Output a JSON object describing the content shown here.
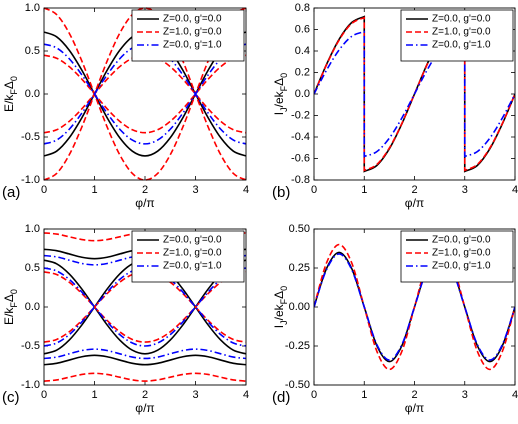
{
  "chart_data": [
    {
      "type": "line",
      "panel_label": "(a)",
      "xlabel": "φ/π",
      "ylabel": [
        "E/k",
        "F",
        "Δ",
        "0"
      ],
      "xlim": [
        0,
        4
      ],
      "xticks": [
        0,
        1,
        2,
        3,
        4
      ],
      "ylim": [
        -1,
        1
      ],
      "yticks": [
        {
          "value": 1,
          "label": "1.0"
        },
        {
          "value": 0.5,
          "label": "0.5"
        },
        {
          "value": 0,
          "label": "0.0"
        },
        {
          "value": -0.5,
          "label": "-0.5"
        },
        {
          "value": -1,
          "label": "-1.0"
        }
      ],
      "legend": "upper right",
      "x": [
        0,
        0.25,
        0.5,
        0.75,
        1,
        1.25,
        1.5,
        1.75,
        2,
        2.25,
        2.5,
        2.75,
        3,
        3.25,
        3.5,
        3.75,
        4
      ],
      "series": [
        {
          "name": "Z=0.0, g'=0.0",
          "color": "#000000",
          "dash": "solid",
          "curves": [
            [
              0.72,
              0.665,
              0.509,
              0.276,
              0,
              -0.276,
              -0.509,
              -0.665,
              -0.72,
              -0.665,
              -0.509,
              -0.276,
              0,
              0.276,
              0.509,
              0.665,
              0.72
            ],
            [
              -0.72,
              -0.665,
              -0.509,
              -0.276,
              0,
              0.276,
              0.509,
              0.665,
              0.72,
              0.665,
              0.509,
              0.276,
              0,
              -0.276,
              -0.509,
              -0.665,
              -0.72
            ]
          ]
        },
        {
          "name": "Z=1.0, g'=0.0",
          "color": "#ff0000",
          "dash": "dashed",
          "curves": [
            [
              1,
              0.924,
              0.707,
              0.383,
              0,
              -0.383,
              -0.707,
              -0.924,
              -1,
              -0.924,
              -0.707,
              -0.383,
              0,
              0.383,
              0.707,
              0.924,
              1
            ],
            [
              -1,
              -0.924,
              -0.707,
              -0.383,
              0,
              0.383,
              0.707,
              0.924,
              1,
              0.924,
              0.707,
              0.383,
              0,
              -0.383,
              -0.707,
              -0.924,
              -1
            ],
            [
              0.45,
              0.416,
              0.318,
              0.172,
              0,
              -0.172,
              -0.318,
              -0.416,
              -0.45,
              -0.416,
              -0.318,
              -0.172,
              0,
              0.172,
              0.318,
              0.416,
              0.45
            ],
            [
              -0.45,
              -0.416,
              -0.318,
              -0.172,
              0,
              0.172,
              0.318,
              0.416,
              0.45,
              0.416,
              0.318,
              0.172,
              0,
              -0.172,
              -0.318,
              -0.416,
              -0.45
            ]
          ]
        },
        {
          "name": "Z=0.0, g'=1.0",
          "color": "#0000ff",
          "dash": "dashdot",
          "curves": [
            [
              0.58,
              0.536,
              0.41,
              0.222,
              0,
              -0.222,
              -0.41,
              -0.536,
              -0.58,
              -0.536,
              -0.41,
              -0.222,
              0,
              0.222,
              0.41,
              0.536,
              0.58
            ],
            [
              -0.58,
              -0.536,
              -0.41,
              -0.222,
              0,
              0.222,
              0.41,
              0.536,
              0.58,
              0.536,
              0.41,
              0.222,
              0,
              -0.222,
              -0.41,
              -0.536,
              -0.58
            ]
          ]
        }
      ]
    },
    {
      "type": "line",
      "panel_label": "(b)",
      "xlabel": "φ/π",
      "ylabel": [
        "I",
        "J",
        "/ek",
        "F",
        "Δ",
        "0"
      ],
      "xlim": [
        0,
        4
      ],
      "xticks": [
        0,
        1,
        2,
        3,
        4
      ],
      "ylim": [
        -0.8,
        0.8
      ],
      "yticks": [
        0.8,
        0.6,
        0.4,
        0.2,
        {
          "value": 0,
          "label": "0.0"
        },
        -0.2,
        -0.4,
        -0.6,
        -0.8
      ],
      "legend": "upper right",
      "x": [
        0,
        0.25,
        0.5,
        0.75,
        1,
        1,
        1.25,
        1.5,
        1.75,
        2,
        2.25,
        2.5,
        2.75,
        3,
        3,
        3.25,
        3.5,
        3.75,
        4
      ],
      "series": [
        {
          "name": "Z=0.0, g'=0.0",
          "color": "#000000",
          "dash": "solid",
          "curves": [
            [
              0,
              0.276,
              0.509,
              0.665,
              0.72,
              -0.72,
              -0.665,
              -0.509,
              -0.276,
              0,
              0.276,
              0.509,
              0.665,
              0.72,
              -0.72,
              -0.665,
              -0.509,
              -0.276,
              0
            ]
          ]
        },
        {
          "name": "Z=1.0, g'=0.0",
          "color": "#ff0000",
          "dash": "dashed",
          "curves": [
            [
              0,
              0.272,
              0.502,
              0.656,
              0.71,
              -0.71,
              -0.656,
              -0.502,
              -0.272,
              0,
              0.272,
              0.502,
              0.656,
              0.71,
              -0.71,
              -0.656,
              -0.502,
              -0.272,
              0
            ]
          ]
        },
        {
          "name": "Z=0.0, g'=1.0",
          "color": "#0000ff",
          "dash": "dashdot",
          "curves": [
            [
              0,
              0.222,
              0.41,
              0.536,
              0.58,
              -0.58,
              -0.536,
              -0.41,
              -0.222,
              0,
              0.222,
              0.41,
              0.536,
              0.58,
              -0.58,
              -0.536,
              -0.41,
              -0.222,
              0
            ]
          ]
        }
      ]
    },
    {
      "type": "line",
      "panel_label": "(c)",
      "xlabel": "φ/π",
      "ylabel": [
        "E/k",
        "F",
        "Δ",
        "0"
      ],
      "xlim": [
        0,
        4
      ],
      "xticks": [
        0,
        1,
        2,
        3,
        4
      ],
      "ylim": [
        -1,
        1
      ],
      "yticks": [
        {
          "value": 1,
          "label": "1.0"
        },
        {
          "value": 0.5,
          "label": "0.5"
        },
        {
          "value": 0,
          "label": "0.0"
        },
        {
          "value": -0.5,
          "label": "-0.5"
        },
        {
          "value": -1,
          "label": "-1.0"
        }
      ],
      "legend": "upper right",
      "x": [
        0,
        0.25,
        0.5,
        0.75,
        1,
        1.25,
        1.5,
        1.75,
        2,
        2.25,
        2.5,
        2.75,
        3,
        3.25,
        3.5,
        3.75,
        4
      ],
      "series": [
        {
          "name": "Z=0.0, g'=0.0",
          "color": "#000000",
          "dash": "solid",
          "curves": [
            [
              0.74,
              0.722,
              0.68,
              0.638,
              0.62,
              0.638,
              0.68,
              0.722,
              0.74,
              0.722,
              0.68,
              0.638,
              0.62,
              0.638,
              0.68,
              0.722,
              0.74
            ],
            [
              -0.74,
              -0.722,
              -0.68,
              -0.638,
              -0.62,
              -0.638,
              -0.68,
              -0.722,
              -0.74,
              -0.722,
              -0.68,
              -0.638,
              -0.62,
              -0.638,
              -0.68,
              -0.722,
              -0.74
            ],
            [
              0.6,
              0.554,
              0.424,
              0.23,
              0,
              -0.23,
              -0.424,
              -0.554,
              -0.6,
              -0.554,
              -0.424,
              -0.23,
              0,
              0.23,
              0.424,
              0.554,
              0.6
            ],
            [
              -0.6,
              -0.554,
              -0.424,
              -0.23,
              0,
              0.23,
              0.424,
              0.554,
              0.6,
              0.554,
              0.424,
              0.23,
              0,
              -0.23,
              -0.424,
              -0.554,
              -0.6
            ]
          ]
        },
        {
          "name": "Z=1.0, g'=0.0",
          "color": "#ff0000",
          "dash": "dashed",
          "curves": [
            [
              0.95,
              0.935,
              0.9,
              0.865,
              0.85,
              0.865,
              0.9,
              0.935,
              0.95,
              0.935,
              0.9,
              0.865,
              0.85,
              0.865,
              0.9,
              0.935,
              0.95
            ],
            [
              -0.95,
              -0.935,
              -0.9,
              -0.865,
              -0.85,
              -0.865,
              -0.9,
              -0.935,
              -0.95,
              -0.935,
              -0.9,
              -0.865,
              -0.85,
              -0.865,
              -0.9,
              -0.935,
              -0.95
            ],
            [
              0.45,
              0.416,
              0.318,
              0.172,
              0,
              -0.172,
              -0.318,
              -0.416,
              -0.45,
              -0.416,
              -0.318,
              -0.172,
              0,
              0.172,
              0.318,
              0.416,
              0.45
            ],
            [
              -0.45,
              -0.416,
              -0.318,
              -0.172,
              0,
              0.172,
              0.318,
              0.416,
              0.45,
              0.416,
              0.318,
              0.172,
              0,
              -0.172,
              -0.318,
              -0.416,
              -0.45
            ]
          ]
        },
        {
          "name": "Z=0.0, g'=1.0",
          "color": "#0000ff",
          "dash": "dashdot",
          "curves": [
            [
              0.66,
              0.642,
              0.6,
              0.558,
              0.54,
              0.558,
              0.6,
              0.642,
              0.66,
              0.642,
              0.6,
              0.558,
              0.54,
              0.558,
              0.6,
              0.642,
              0.66
            ],
            [
              -0.66,
              -0.642,
              -0.6,
              -0.558,
              -0.54,
              -0.558,
              -0.6,
              -0.642,
              -0.66,
              -0.642,
              -0.6,
              -0.558,
              -0.54,
              -0.558,
              -0.6,
              -0.642,
              -0.66
            ],
            [
              0.5,
              0.462,
              0.354,
              0.191,
              0,
              -0.191,
              -0.354,
              -0.462,
              -0.5,
              -0.462,
              -0.354,
              -0.191,
              0,
              0.191,
              0.354,
              0.462,
              0.5
            ],
            [
              -0.5,
              -0.462,
              -0.354,
              -0.191,
              0,
              0.191,
              0.354,
              0.462,
              0.5,
              0.462,
              0.354,
              0.191,
              0,
              -0.191,
              -0.354,
              -0.462,
              -0.5
            ]
          ]
        }
      ]
    },
    {
      "type": "line",
      "panel_label": "(d)",
      "xlabel": "φ/π",
      "ylabel": [
        "I",
        "J",
        "/ek",
        "F",
        "Δ",
        "0"
      ],
      "xlim": [
        0,
        4
      ],
      "xticks": [
        0,
        1,
        2,
        3,
        4
      ],
      "ylim": [
        -0.5,
        0.5
      ],
      "yticks": [
        {
          "value": 0.5,
          "label": "0.50"
        },
        {
          "value": 0.25,
          "label": "0.25"
        },
        {
          "value": 0,
          "label": "0.00"
        },
        {
          "value": -0.25,
          "label": "-0.25"
        },
        {
          "value": -0.5,
          "label": "-0.50"
        }
      ],
      "legend": "upper right",
      "x": [
        0,
        0.25,
        0.5,
        0.75,
        1,
        1.25,
        1.5,
        1.75,
        2,
        2.25,
        2.5,
        2.75,
        3,
        3.25,
        3.5,
        3.75,
        4
      ],
      "series": [
        {
          "name": "Z=0.0, g'=0.0",
          "color": "#000000",
          "dash": "solid",
          "curves": [
            [
              0,
              0.247,
              0.35,
              0.247,
              0,
              -0.247,
              -0.35,
              -0.247,
              0,
              0.247,
              0.35,
              0.247,
              0,
              -0.247,
              -0.35,
              -0.247,
              0
            ]
          ]
        },
        {
          "name": "Z=1.0, g'=0.0",
          "color": "#ff0000",
          "dash": "dashed",
          "curves": [
            [
              0,
              0.283,
              0.4,
              0.283,
              0,
              -0.283,
              -0.4,
              -0.283,
              0,
              0.283,
              0.4,
              0.283,
              0,
              -0.283,
              -0.4,
              -0.283,
              0
            ]
          ]
        },
        {
          "name": "Z=0.0, g'=1.0",
          "color": "#0000ff",
          "dash": "dashdot",
          "curves": [
            [
              0,
              0.24,
              0.34,
              0.24,
              0,
              -0.24,
              -0.34,
              -0.24,
              0,
              0.24,
              0.34,
              0.24,
              0,
              -0.24,
              -0.34,
              -0.24,
              0
            ]
          ]
        }
      ]
    }
  ]
}
